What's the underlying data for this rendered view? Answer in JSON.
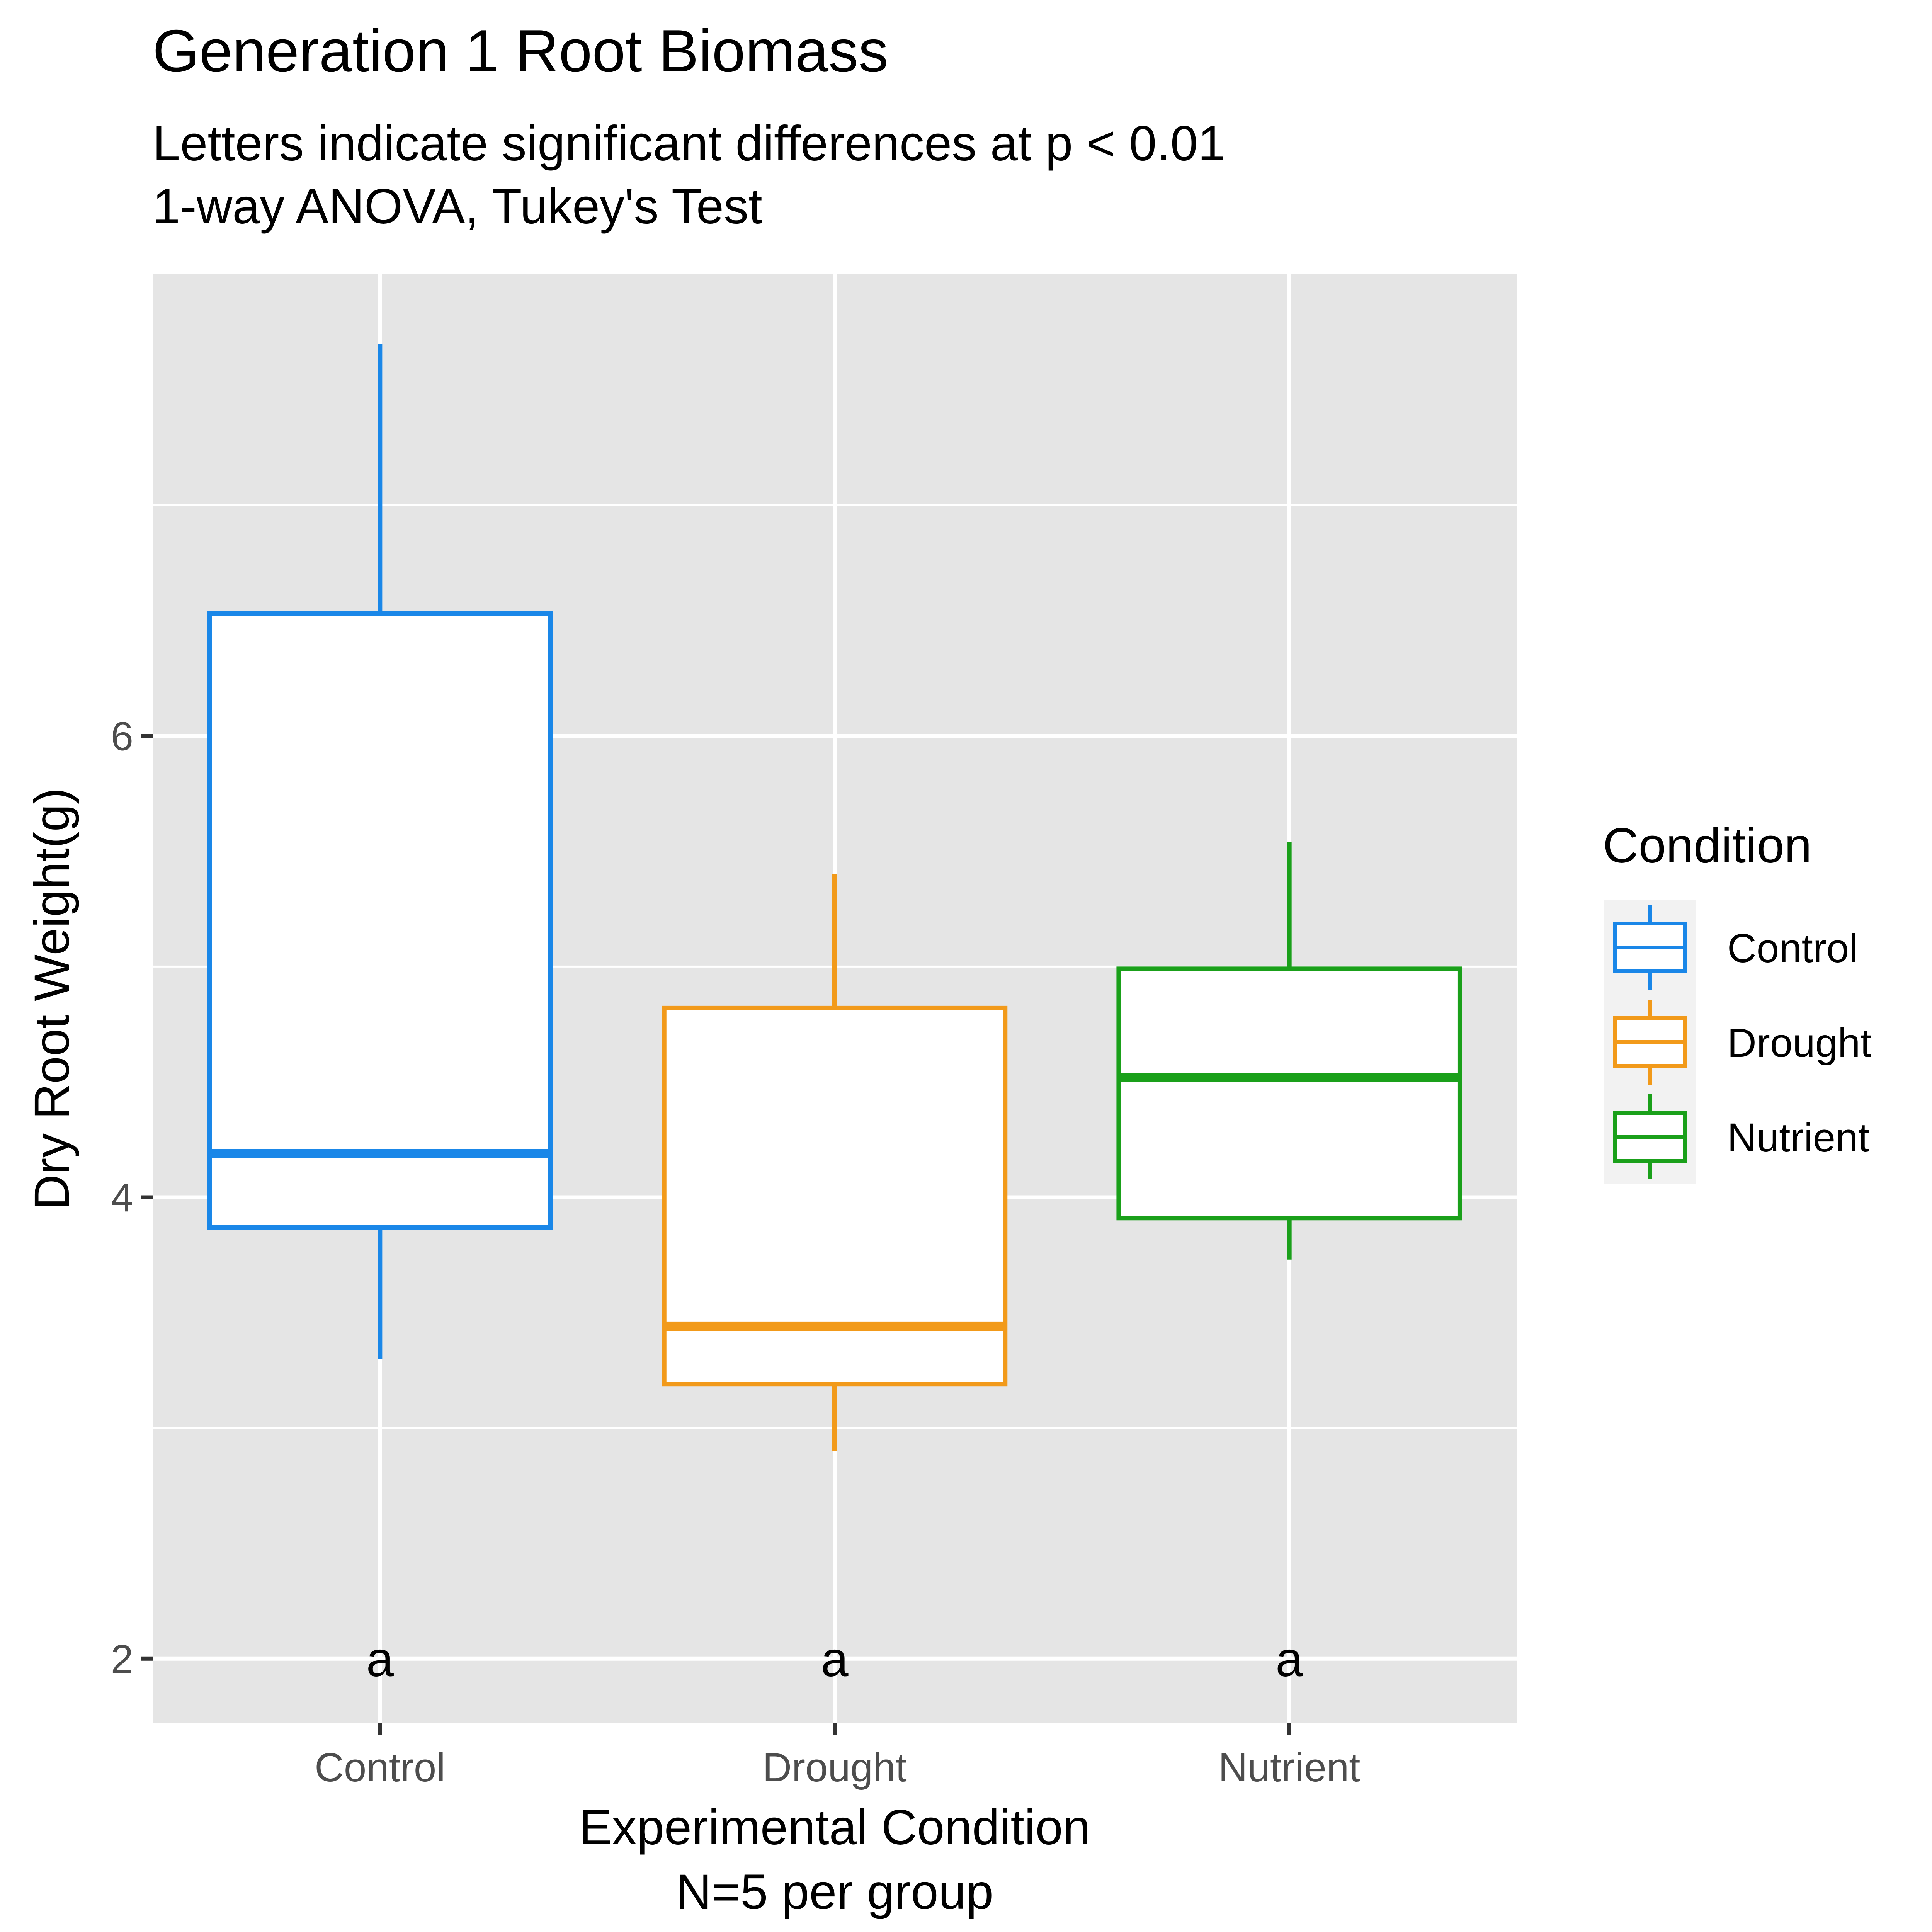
{
  "chart_data": {
    "type": "box",
    "title": "Generation 1 Root Biomass",
    "subtitle_lines": [
      "Letters indicate significant differences at p < 0.01",
      "1-way ANOVA, Tukey's Test"
    ],
    "xlabel_lines": [
      "Experimental Condition",
      "N=5 per group"
    ],
    "ylabel": "Dry Root Weight(g)",
    "ylim": [
      1.72,
      8.0
    ],
    "y_ticks": [
      2,
      4,
      6
    ],
    "y_minor_gridlines": [
      3,
      5,
      7
    ],
    "categories": [
      "Control",
      "Drought",
      "Nutrient"
    ],
    "series": [
      {
        "category": "Control",
        "color": "#1A87E8",
        "min": 3.3,
        "q1": 3.87,
        "median": 4.19,
        "q3": 6.53,
        "max": 7.7,
        "letter": "a"
      },
      {
        "category": "Drought",
        "color": "#F29A1A",
        "min": 2.9,
        "q1": 3.19,
        "median": 3.44,
        "q3": 4.82,
        "max": 5.4,
        "letter": "a"
      },
      {
        "category": "Nutrient",
        "color": "#1AA01A",
        "min": 3.73,
        "q1": 3.91,
        "median": 4.52,
        "q3": 4.99,
        "max": 5.54,
        "letter": "a"
      }
    ],
    "legend": {
      "title": "Condition",
      "position": "right",
      "items": [
        "Control",
        "Drought",
        "Nutrient"
      ]
    },
    "grid": true,
    "panel_background": "#E5E5E5",
    "grid_color": "#FFFFFF"
  }
}
